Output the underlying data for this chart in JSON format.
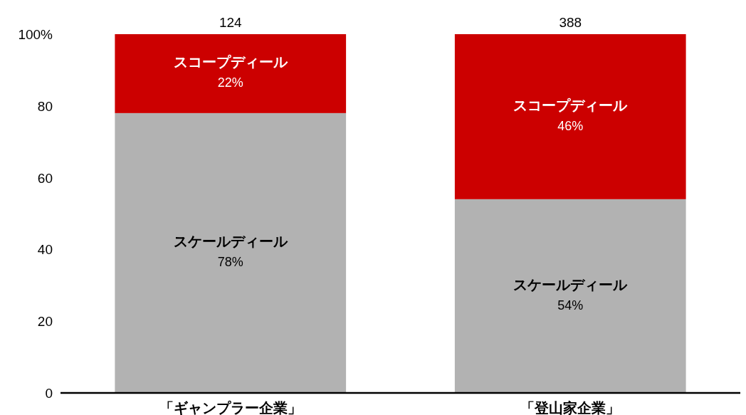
{
  "chart_data": {
    "type": "bar",
    "stacked": true,
    "categories": [
      "「ギャンプラー企業」",
      "「登山家企業」"
    ],
    "series": [
      {
        "name": "スケールディール",
        "color": "#b2b2b2",
        "values": [
          78,
          54
        ],
        "value_labels": [
          "78%",
          "54%"
        ]
      },
      {
        "name": "スコープディール",
        "color": "#cc0000",
        "values": [
          22,
          46
        ],
        "value_labels": [
          "22%",
          "46%"
        ]
      }
    ],
    "annotations": [
      {
        "text": "124",
        "x": "「ギャンプラー企業」",
        "y": 100
      },
      {
        "text": "388",
        "x": "「登山家企業」",
        "y": 100
      }
    ],
    "ylim": [
      0,
      100
    ],
    "yticks": [
      0,
      20,
      40,
      60,
      {
        "value": 80,
        "label": "80"
      },
      {
        "value": 100,
        "label": "100%"
      }
    ]
  }
}
